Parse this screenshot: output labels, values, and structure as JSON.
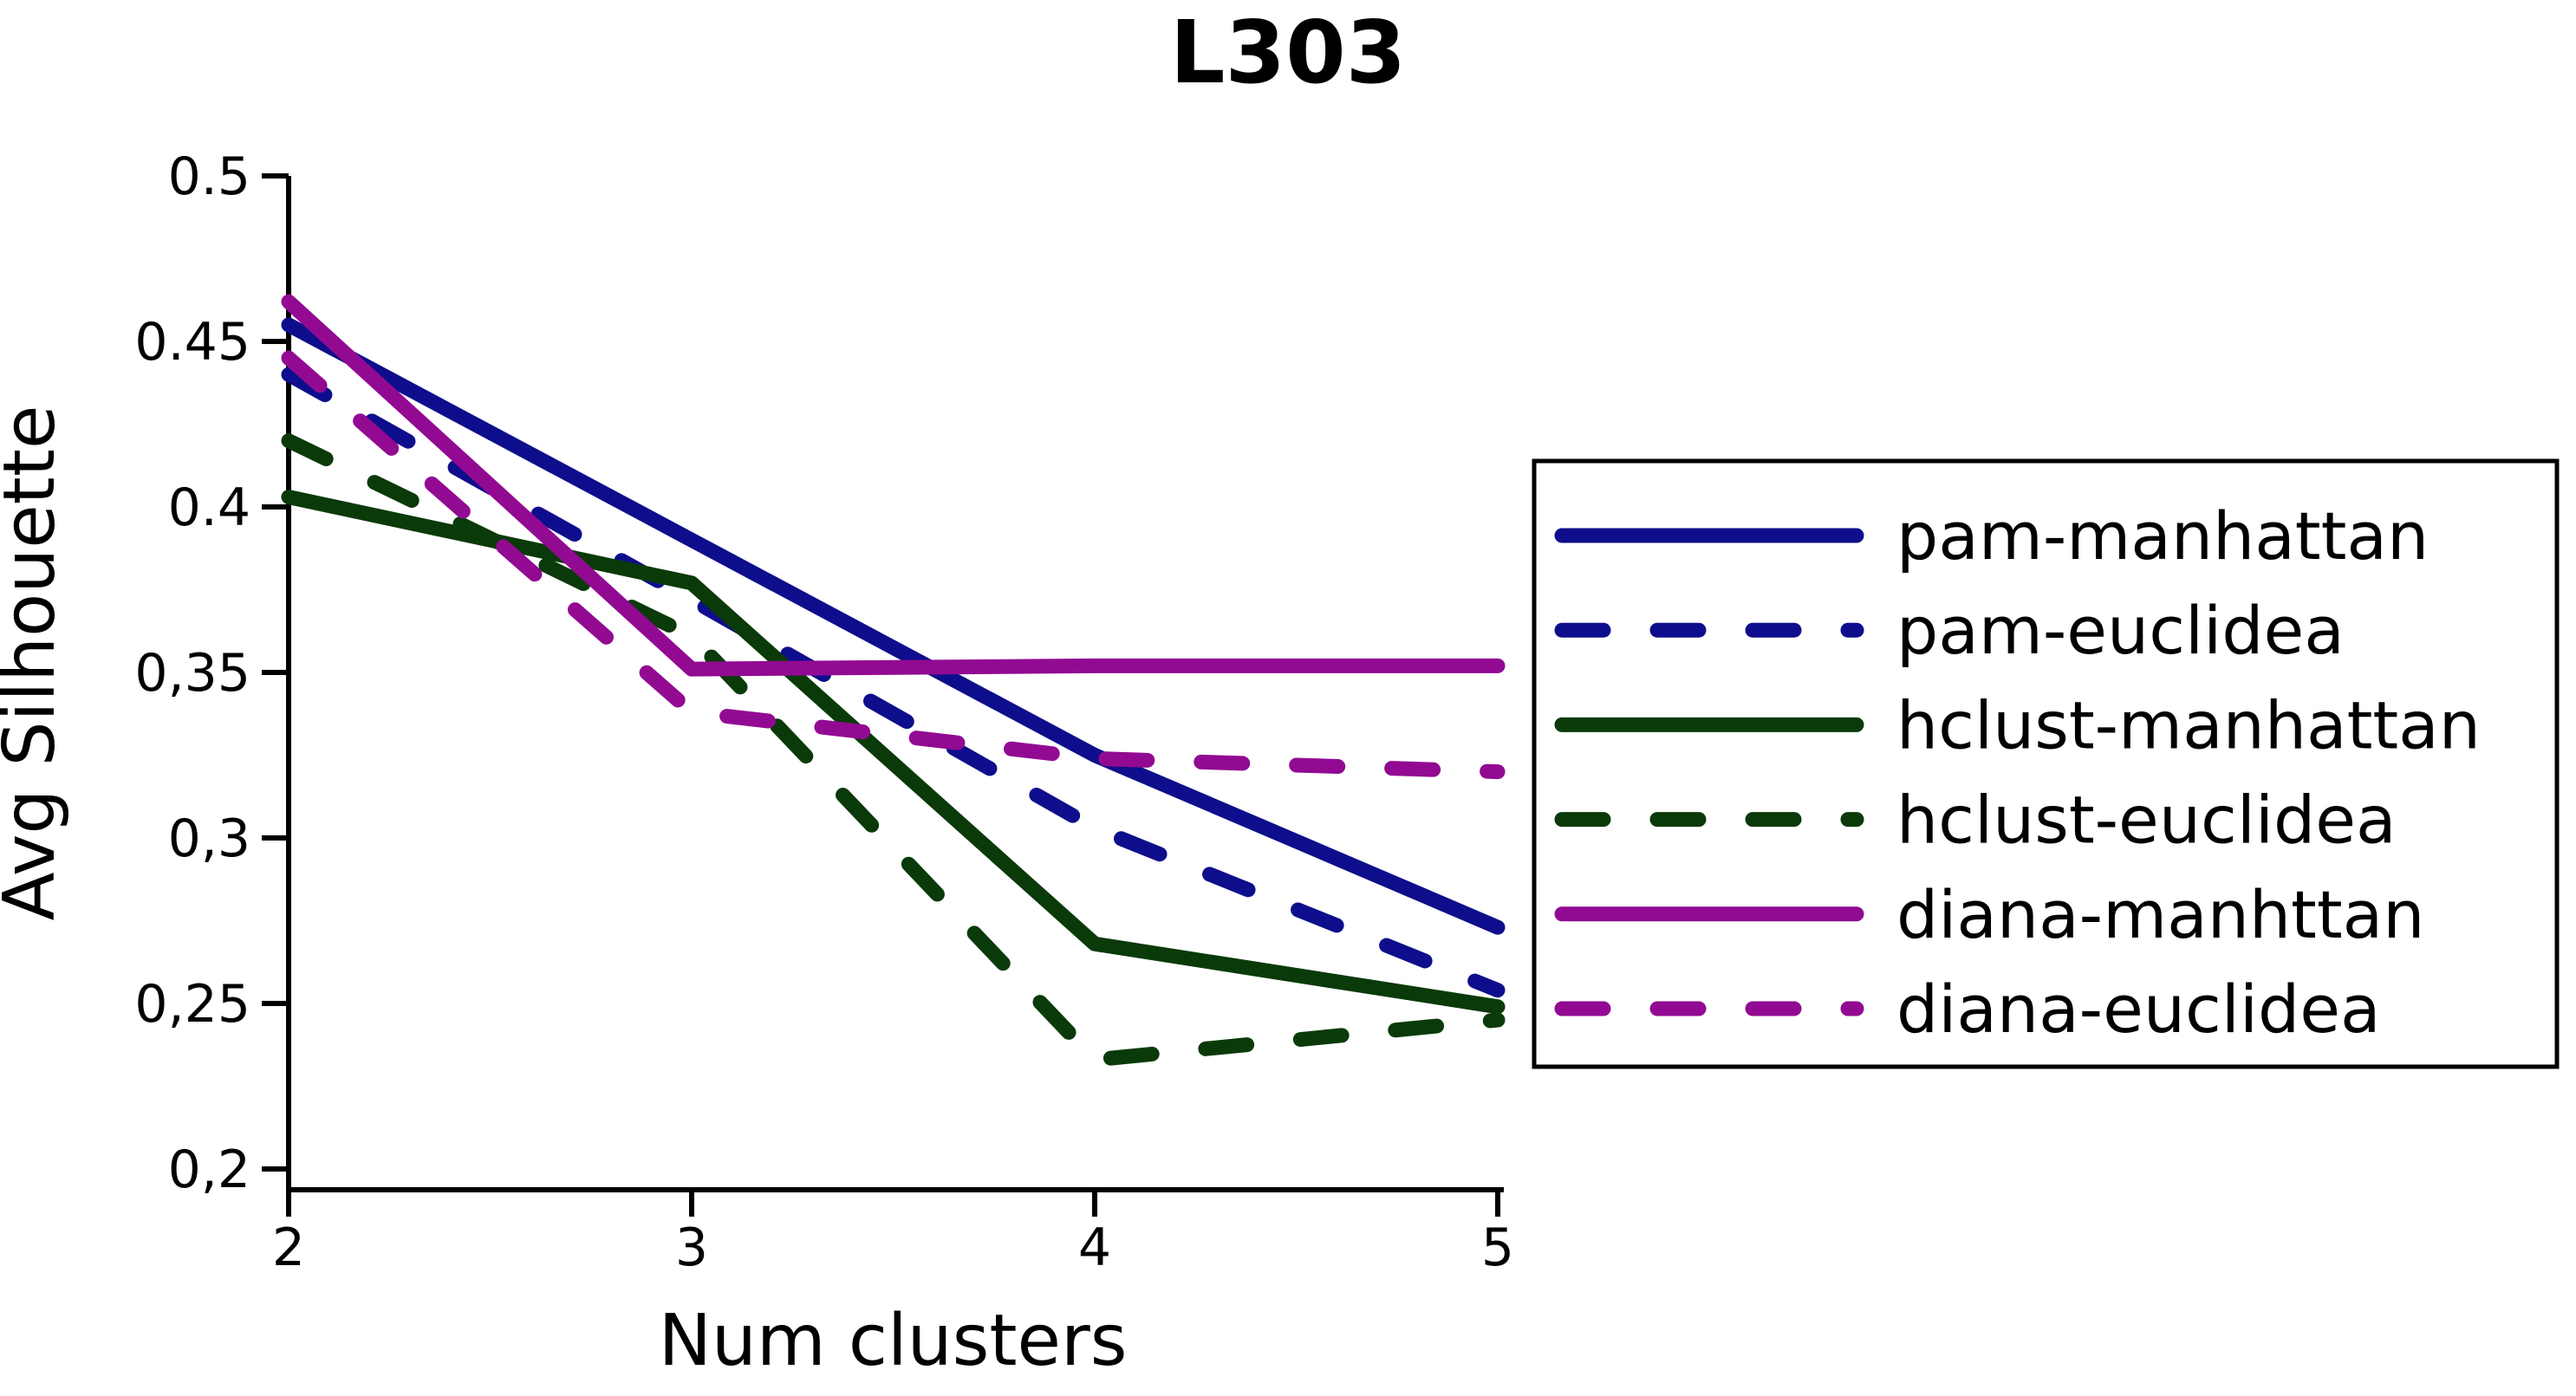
{
  "title": "L303",
  "axes": {
    "x_label": "Num clusters",
    "y_label": "Avg Silhouette",
    "x_ticks": [
      "2",
      "3",
      "4",
      "5"
    ],
    "y_ticks": [
      {
        "v": 0.5,
        "label": "0.5"
      },
      {
        "v": 0.45,
        "label": "0.45"
      },
      {
        "v": 0.4,
        "label": "0.4"
      },
      {
        "v": 0.35,
        "label": "0,35"
      },
      {
        "v": 0.3,
        "label": "0,3"
      },
      {
        "v": 0.25,
        "label": "0,25"
      },
      {
        "v": 0.2,
        "label": "0,2"
      }
    ]
  },
  "chart_data": {
    "type": "line",
    "title": "L303",
    "xlabel": "Num clusters",
    "ylabel": "Avg Silhouette",
    "x": [
      2,
      3,
      4,
      5
    ],
    "xlim": [
      2,
      5
    ],
    "ylim": [
      0.2,
      0.5
    ],
    "grid": false,
    "legend_position": "right",
    "axis_color": "#000000",
    "series": [
      {
        "name": "pam-manhattan",
        "color": "#0e0e8c",
        "style": "solid",
        "values": [
          0.455,
          0.39,
          0.325,
          0.273
        ]
      },
      {
        "name": "pam-euclidea",
        "color": "#0e0e8c",
        "style": "dashed",
        "values": [
          0.44,
          0.372,
          0.303,
          0.254
        ]
      },
      {
        "name": "hclust-manhattan",
        "color": "#0a3a0a",
        "style": "solid",
        "values": [
          0.403,
          0.377,
          0.268,
          0.249
        ]
      },
      {
        "name": "hclust-euclidea",
        "color": "#0a3a0a",
        "style": "dashed",
        "values": [
          0.42,
          0.361,
          0.233,
          0.245
        ]
      },
      {
        "name": "diana-manhttan",
        "color": "#920a92",
        "style": "solid",
        "values": [
          0.462,
          0.351,
          0.352,
          0.352
        ]
      },
      {
        "name": "diana-euclidea",
        "color": "#920a92",
        "style": "dashed",
        "values": [
          0.445,
          0.338,
          0.324,
          0.32
        ]
      }
    ]
  }
}
